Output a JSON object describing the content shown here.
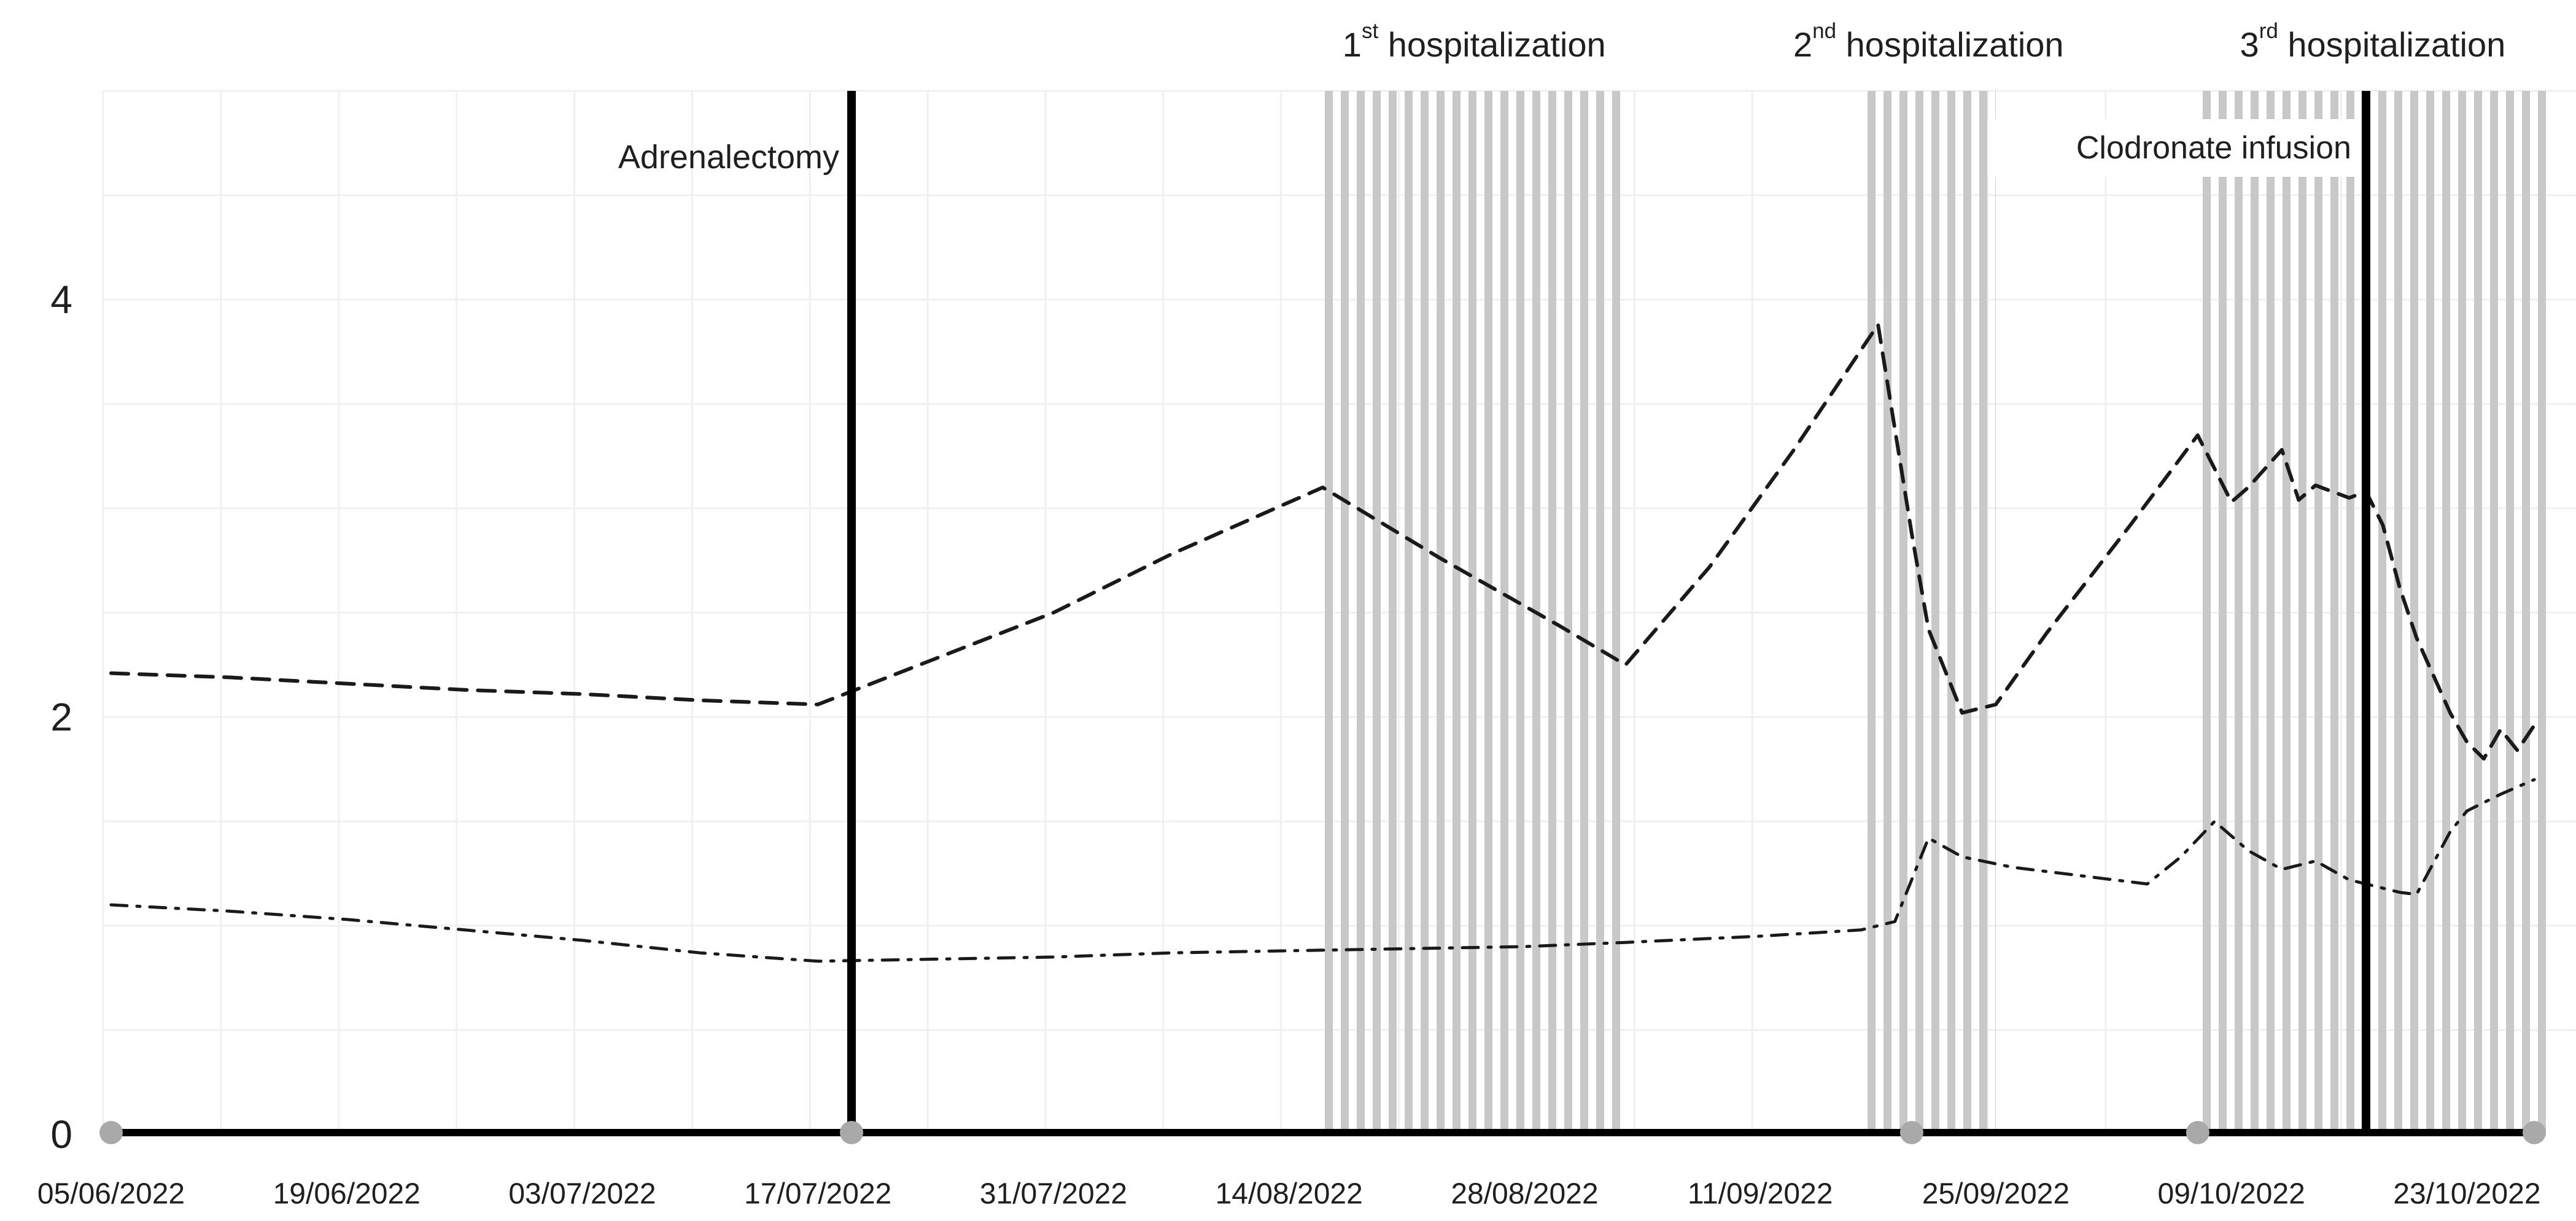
{
  "chart_data": {
    "type": "line",
    "title": "",
    "xlabel": "",
    "ylabel": "",
    "x_axis": {
      "start_date": "05/06/2022",
      "end_date": "28/10/2022",
      "tick_labels": [
        "05/06/2022",
        "19/06/2022",
        "03/07/2022",
        "17/07/2022",
        "31/07/2022",
        "14/08/2022",
        "28/08/2022",
        "11/09/2022",
        "25/09/2022",
        "09/10/2022",
        "23/10/2022"
      ],
      "gridline_interval_days": 7
    },
    "y_axis": {
      "min": 0,
      "max": 5,
      "tick_labels": [
        "0",
        "2",
        "4"
      ],
      "tick_values": [
        0,
        2,
        4
      ],
      "gridline_step": 0.5
    },
    "grid": "on",
    "legend": "none",
    "series": [
      {
        "name": "dashed-series",
        "style": "dashed",
        "points": [
          {
            "date": "05/06/2022",
            "value": 2.21
          },
          {
            "date": "12/06/2022",
            "value": 2.19
          },
          {
            "date": "19/06/2022",
            "value": 2.16
          },
          {
            "date": "26/06/2022",
            "value": 2.13
          },
          {
            "date": "03/07/2022",
            "value": 2.11
          },
          {
            "date": "10/07/2022",
            "value": 2.08
          },
          {
            "date": "17/07/2022",
            "value": 2.06
          },
          {
            "date": "24/07/2022",
            "value": 2.28
          },
          {
            "date": "31/07/2022",
            "value": 2.5
          },
          {
            "date": "07/08/2022",
            "value": 2.78
          },
          {
            "date": "16/08/2022",
            "value": 3.1
          },
          {
            "date": "23/08/2022",
            "value": 2.76
          },
          {
            "date": "30/08/2022",
            "value": 2.44
          },
          {
            "date": "03/09/2022",
            "value": 2.25
          },
          {
            "date": "08/09/2022",
            "value": 2.72
          },
          {
            "date": "13/09/2022",
            "value": 3.28
          },
          {
            "date": "18/09/2022",
            "value": 3.88
          },
          {
            "date": "20/09/2022",
            "value": 2.88
          },
          {
            "date": "21/09/2022",
            "value": 2.42
          },
          {
            "date": "23/09/2022",
            "value": 2.02
          },
          {
            "date": "25/09/2022",
            "value": 2.06
          },
          {
            "date": "28/09/2022",
            "value": 2.4
          },
          {
            "date": "03/10/2022",
            "value": 2.92
          },
          {
            "date": "07/10/2022",
            "value": 3.35
          },
          {
            "date": "09/10/2022",
            "value": 3.03
          },
          {
            "date": "10/10/2022",
            "value": 3.1
          },
          {
            "date": "12/10/2022",
            "value": 3.28
          },
          {
            "date": "13/10/2022",
            "value": 3.04
          },
          {
            "date": "14/10/2022",
            "value": 3.11
          },
          {
            "date": "16/10/2022",
            "value": 3.05
          },
          {
            "date": "17/10/2022",
            "value": 3.08
          },
          {
            "date": "18/10/2022",
            "value": 2.92
          },
          {
            "date": "19/10/2022",
            "value": 2.62
          },
          {
            "date": "20/10/2022",
            "value": 2.38
          },
          {
            "date": "21/10/2022",
            "value": 2.2
          },
          {
            "date": "22/10/2022",
            "value": 2.02
          },
          {
            "date": "23/10/2022",
            "value": 1.88
          },
          {
            "date": "24/10/2022",
            "value": 1.8
          },
          {
            "date": "25/10/2022",
            "value": 1.94
          },
          {
            "date": "26/10/2022",
            "value": 1.84
          },
          {
            "date": "27/10/2022",
            "value": 1.96
          }
        ]
      },
      {
        "name": "dash-dot-series",
        "style": "dash-dot",
        "points": [
          {
            "date": "05/06/2022",
            "value": 1.1
          },
          {
            "date": "12/06/2022",
            "value": 1.07
          },
          {
            "date": "19/06/2022",
            "value": 1.03
          },
          {
            "date": "26/06/2022",
            "value": 0.98
          },
          {
            "date": "03/07/2022",
            "value": 0.93
          },
          {
            "date": "10/07/2022",
            "value": 0.87
          },
          {
            "date": "17/07/2022",
            "value": 0.83
          },
          {
            "date": "24/07/2022",
            "value": 0.84
          },
          {
            "date": "31/07/2022",
            "value": 0.85
          },
          {
            "date": "07/08/2022",
            "value": 0.87
          },
          {
            "date": "14/08/2022",
            "value": 0.88
          },
          {
            "date": "21/08/2022",
            "value": 0.89
          },
          {
            "date": "28/08/2022",
            "value": 0.9
          },
          {
            "date": "03/09/2022",
            "value": 0.92
          },
          {
            "date": "11/09/2022",
            "value": 0.95
          },
          {
            "date": "17/09/2022",
            "value": 0.98
          },
          {
            "date": "19/09/2022",
            "value": 1.02
          },
          {
            "date": "21/09/2022",
            "value": 1.42
          },
          {
            "date": "23/09/2022",
            "value": 1.33
          },
          {
            "date": "26/09/2022",
            "value": 1.28
          },
          {
            "date": "01/10/2022",
            "value": 1.23
          },
          {
            "date": "04/10/2022",
            "value": 1.2
          },
          {
            "date": "06/10/2022",
            "value": 1.33
          },
          {
            "date": "08/10/2022",
            "value": 1.5
          },
          {
            "date": "10/10/2022",
            "value": 1.36
          },
          {
            "date": "12/10/2022",
            "value": 1.27
          },
          {
            "date": "14/10/2022",
            "value": 1.31
          },
          {
            "date": "16/10/2022",
            "value": 1.22
          },
          {
            "date": "17/10/2022",
            "value": 1.2
          },
          {
            "date": "19/10/2022",
            "value": 1.16
          },
          {
            "date": "20/10/2022",
            "value": 1.15
          },
          {
            "date": "22/10/2022",
            "value": 1.45
          },
          {
            "date": "23/10/2022",
            "value": 1.55
          },
          {
            "date": "25/10/2022",
            "value": 1.63
          },
          {
            "date": "27/10/2022",
            "value": 1.7
          }
        ]
      }
    ],
    "events": [
      {
        "label": "Adrenalectomy",
        "date": "19/07/2022",
        "label_background": "none"
      },
      {
        "label": "Clodronate infusion",
        "date": "17/10/2022",
        "label_background": "white"
      }
    ],
    "hospitalization_bands": [
      {
        "number": "1",
        "ordinal_suffix": "st",
        "label_text": " hospitalization",
        "start": "16/08/2022",
        "end": "03/09/2022"
      },
      {
        "number": "2",
        "ordinal_suffix": "nd",
        "label_text": " hospitalization",
        "start": "17/09/2022",
        "end": "25/09/2022"
      },
      {
        "number": "3",
        "ordinal_suffix": "rd",
        "label_text": " hospitalization",
        "start": "07/10/2022",
        "end": "28/10/2022"
      }
    ],
    "axis_marker_dates": [
      "05/06/2022",
      "19/07/2022",
      "20/09/2022",
      "07/10/2022",
      "27/10/2022"
    ],
    "colors": {
      "line": "#1a1a1a",
      "band_stripe": "#cac8c6",
      "gridline": "#f0f0f0",
      "axis": "#000000",
      "axis_marker": "#a9a9a9",
      "text": "#1f1f1f",
      "event_line": "#000000",
      "label_box": "#ffffff"
    }
  }
}
